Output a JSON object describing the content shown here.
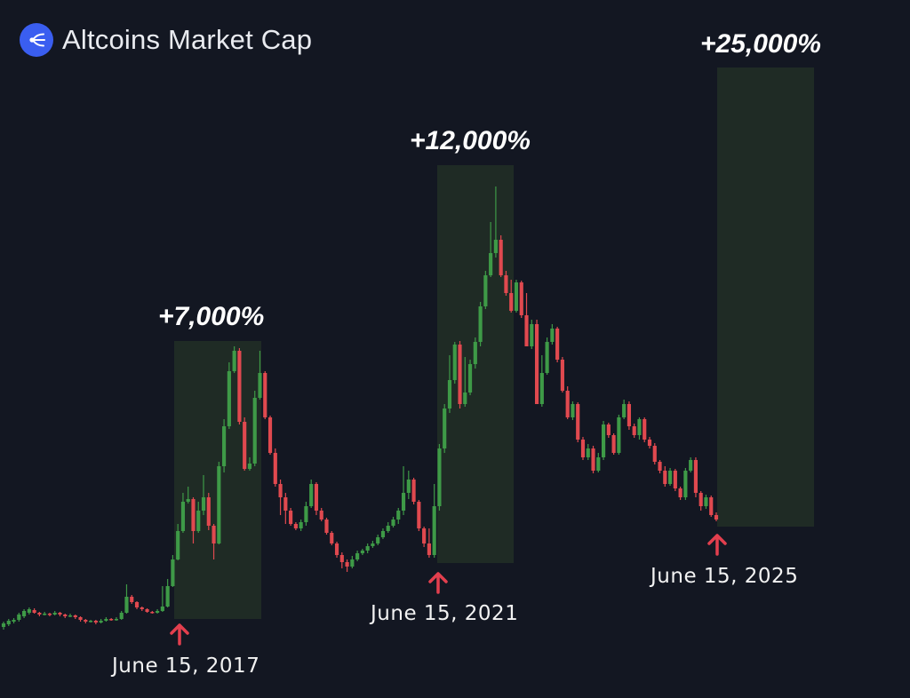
{
  "header": {
    "title": "Altcoins Market Cap",
    "logo_icon": "network-hub-icon"
  },
  "colors": {
    "background": "#131722",
    "up": "#3e9a47",
    "down": "#e0494f",
    "zone": "#1f2b25",
    "arrow": "#e33f4e",
    "logo": "#3a5ef0"
  },
  "chart_data": {
    "type": "candlestick",
    "title": "Altcoins Market Cap",
    "annotations": [
      {
        "label": "+7,000%",
        "date_label": "June 15, 2017"
      },
      {
        "label": "+12,000%",
        "date_label": "June 15, 2021"
      },
      {
        "label": "+25,000%",
        "date_label": "June 15, 2025"
      }
    ],
    "candles": [
      [
        706,
        702,
        709,
        700
      ],
      [
        703,
        699,
        705,
        697
      ],
      [
        700,
        698,
        702,
        696
      ],
      [
        698,
        692,
        700,
        690
      ],
      [
        694,
        688,
        696,
        686
      ],
      [
        690,
        686,
        692,
        684
      ],
      [
        687,
        690,
        691,
        685
      ],
      [
        690,
        692,
        694,
        689
      ],
      [
        692,
        691,
        693,
        689
      ],
      [
        691,
        692,
        694,
        690
      ],
      [
        692,
        690,
        693,
        688
      ],
      [
        690,
        692,
        694,
        689
      ],
      [
        692,
        694,
        696,
        691
      ],
      [
        694,
        693,
        695,
        691
      ],
      [
        693,
        695,
        697,
        692
      ],
      [
        695,
        698,
        700,
        694
      ],
      [
        698,
        700,
        702,
        697
      ],
      [
        700,
        699,
        701,
        698
      ],
      [
        699,
        701,
        703,
        698
      ],
      [
        701,
        699,
        702,
        697
      ],
      [
        699,
        697,
        700,
        695
      ],
      [
        697,
        698,
        699,
        696
      ],
      [
        698,
        697,
        699,
        695
      ],
      [
        697,
        690,
        698,
        688
      ],
      [
        690,
        672,
        691,
        658
      ],
      [
        672,
        678,
        680,
        670
      ],
      [
        678,
        684,
        686,
        677
      ],
      [
        684,
        686,
        688,
        683
      ],
      [
        686,
        689,
        690,
        685
      ],
      [
        689,
        690,
        691,
        688
      ],
      [
        690,
        688,
        691,
        686
      ],
      [
        688,
        683,
        689,
        660
      ],
      [
        683,
        660,
        684,
        652
      ],
      [
        660,
        630,
        661,
        625
      ],
      [
        630,
        598,
        631,
        590
      ],
      [
        598,
        565,
        600,
        555
      ],
      [
        565,
        562,
        567,
        548
      ],
      [
        562,
        598,
        612,
        560
      ],
      [
        598,
        575,
        600,
        565
      ],
      [
        575,
        560,
        580,
        535
      ],
      [
        560,
        592,
        597,
        555
      ],
      [
        592,
        612,
        630,
        590
      ],
      [
        612,
        525,
        613,
        520
      ],
      [
        525,
        480,
        532,
        472
      ],
      [
        480,
        418,
        483,
        408
      ],
      [
        418,
        395,
        420,
        390
      ],
      [
        395,
        475,
        478,
        392
      ],
      [
        475,
        528,
        530,
        470
      ],
      [
        528,
        522,
        530,
        515
      ],
      [
        522,
        448,
        525,
        440
      ],
      [
        448,
        420,
        450,
        395
      ],
      [
        420,
        470,
        472,
        418
      ],
      [
        470,
        510,
        512,
        468
      ],
      [
        510,
        545,
        548,
        505
      ],
      [
        545,
        560,
        580,
        540
      ],
      [
        560,
        575,
        590,
        555
      ],
      [
        575,
        590,
        592,
        572
      ],
      [
        590,
        595,
        597,
        588
      ],
      [
        595,
        588,
        598,
        585
      ],
      [
        588,
        570,
        592,
        565
      ],
      [
        570,
        545,
        572,
        540
      ],
      [
        545,
        575,
        580,
        543
      ],
      [
        575,
        585,
        587,
        572
      ],
      [
        585,
        600,
        602,
        583
      ],
      [
        600,
        612,
        614,
        598
      ],
      [
        612,
        625,
        628,
        610
      ],
      [
        625,
        633,
        640,
        622
      ],
      [
        633,
        638,
        644,
        630
      ],
      [
        638,
        630,
        640,
        626
      ],
      [
        630,
        623,
        632,
        620
      ],
      [
        623,
        620,
        625,
        618
      ],
      [
        620,
        615,
        623,
        612
      ],
      [
        615,
        612,
        617,
        609
      ],
      [
        612,
        605,
        614,
        602
      ],
      [
        605,
        598,
        607,
        595
      ],
      [
        598,
        592,
        600,
        588
      ],
      [
        592,
        585,
        594,
        582
      ],
      [
        585,
        575,
        590,
        572
      ],
      [
        575,
        555,
        580,
        525
      ],
      [
        555,
        540,
        562,
        530
      ],
      [
        540,
        565,
        568,
        538
      ],
      [
        565,
        595,
        598,
        563
      ],
      [
        595,
        612,
        616,
        593
      ],
      [
        612,
        625,
        628,
        595
      ],
      [
        625,
        570,
        628,
        545
      ],
      [
        570,
        505,
        575,
        500
      ],
      [
        505,
        460,
        510,
        455
      ],
      [
        460,
        428,
        465,
        400
      ],
      [
        428,
        388,
        432,
        385
      ],
      [
        388,
        455,
        460,
        384
      ],
      [
        455,
        442,
        458,
        402
      ],
      [
        442,
        410,
        445,
        405
      ],
      [
        410,
        385,
        415,
        380
      ],
      [
        385,
        345,
        390,
        340
      ],
      [
        345,
        310,
        348,
        305
      ],
      [
        310,
        285,
        312,
        250
      ],
      [
        285,
        270,
        290,
        210
      ],
      [
        270,
        310,
        312,
        265
      ],
      [
        310,
        330,
        333,
        305
      ],
      [
        330,
        350,
        352,
        315
      ],
      [
        350,
        318,
        352,
        315
      ],
      [
        318,
        355,
        358,
        316
      ],
      [
        355,
        390,
        362,
        330
      ],
      [
        390,
        365,
        393,
        360
      ],
      [
        365,
        455,
        368,
        360
      ],
      [
        455,
        420,
        458,
        400
      ],
      [
        420,
        385,
        422,
        380
      ],
      [
        385,
        370,
        388,
        365
      ],
      [
        370,
        405,
        408,
        368
      ],
      [
        405,
        440,
        442,
        402
      ],
      [
        440,
        470,
        472,
        435
      ],
      [
        470,
        455,
        473,
        452
      ],
      [
        455,
        495,
        498,
        453
      ],
      [
        495,
        515,
        518,
        492
      ],
      [
        515,
        505,
        518,
        500
      ],
      [
        505,
        530,
        533,
        502
      ],
      [
        530,
        515,
        532,
        510
      ],
      [
        515,
        478,
        518,
        474
      ],
      [
        478,
        490,
        493,
        476
      ],
      [
        490,
        510,
        512,
        488
      ],
      [
        510,
        470,
        512,
        467
      ],
      [
        470,
        455,
        472,
        450
      ],
      [
        455,
        480,
        484,
        452
      ],
      [
        480,
        490,
        493,
        477
      ],
      [
        490,
        472,
        495,
        470
      ],
      [
        472,
        495,
        498,
        470
      ],
      [
        495,
        502,
        505,
        492
      ],
      [
        502,
        520,
        523,
        499
      ],
      [
        520,
        530,
        533,
        518
      ],
      [
        530,
        545,
        548,
        525
      ],
      [
        545,
        530,
        547,
        527
      ],
      [
        530,
        550,
        553,
        528
      ],
      [
        550,
        560,
        563,
        548
      ],
      [
        560,
        530,
        563,
        527
      ],
      [
        530,
        518,
        532,
        515
      ],
      [
        518,
        555,
        560,
        515
      ],
      [
        555,
        570,
        575,
        553
      ],
      [
        570,
        560,
        573,
        557
      ],
      [
        560,
        580,
        582,
        558
      ],
      [
        580,
        585,
        587,
        577
      ]
    ]
  }
}
